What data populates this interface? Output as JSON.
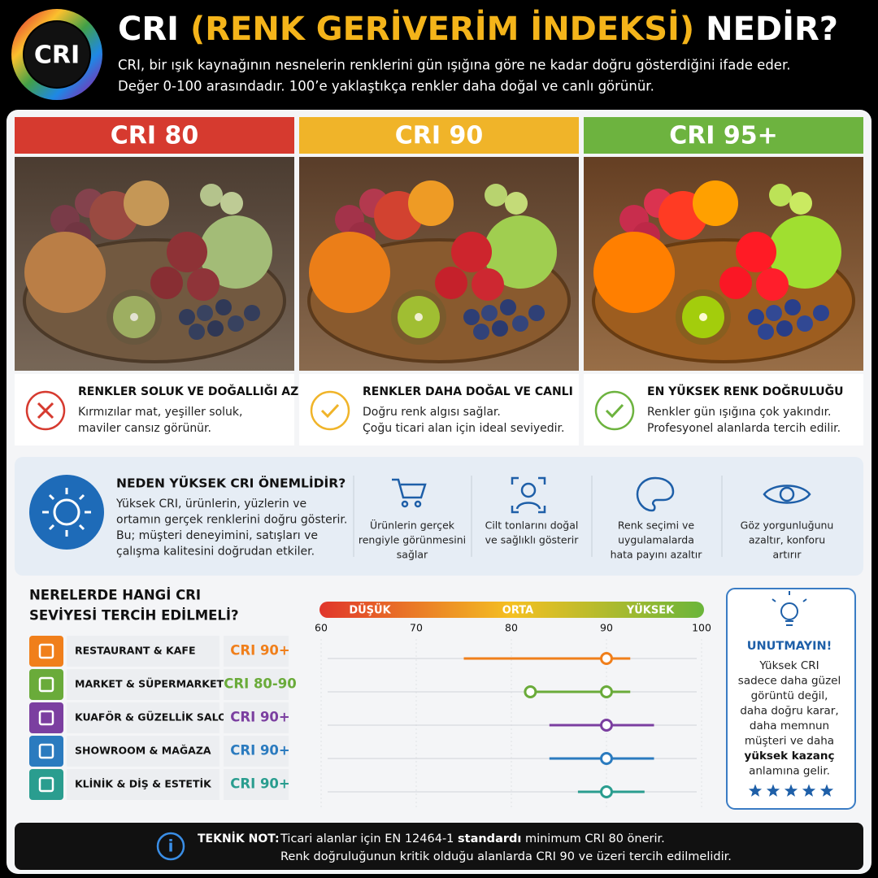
{
  "header": {
    "logo": "CRI",
    "title": [
      "CRI ",
      "(RENK GERİVERİM İNDEKSİ)",
      " NEDİR?"
    ],
    "description": [
      "CRI, bir ışık kaynağının nesnelerin renklerini gün ışığına göre ne kadar doğru gösterdiğini ifade eder.",
      "Değer 0-100 arasındadır. 100’e yaklaştıkça renkler daha doğal ve canlı görünür."
    ]
  },
  "panels": [
    {
      "label": "CRI 80",
      "color": "#d63a2f",
      "heading": "RENKLER SOLUK VE DOĞALLIĞI AZ",
      "lines": [
        "Kırmızılar mat, yeşiller soluk,",
        "maviler cansız görünür."
      ]
    },
    {
      "label": "CRI 90",
      "color": "#f0b429",
      "heading": "RENKLER DAHA DOĞAL VE CANLI",
      "lines": [
        "Doğru renk algısı sağlar.",
        "Çoğu ticari alan için ideal seviyedir."
      ]
    },
    {
      "label": "CRI 95+",
      "color": "#6db33f",
      "heading": "EN YÜKSEK RENK DOĞRULUĞU",
      "lines": [
        "Renkler gün ışığına çok yakındır.",
        "Profesyonel alanlarda tercih edilir."
      ]
    }
  ],
  "importance": {
    "title": "NEDEN YÜKSEK CRI ÖNEMLİDİR?",
    "lines": [
      "Yüksek CRI, ürünlerin, yüzlerin ve",
      "ortamın gerçek renklerini doğru gösterir.",
      "Bu; müşteri deneyimini, satışları ve",
      "çalışma kalitesini doğrudan etkiler."
    ],
    "features": [
      {
        "lines": [
          "Ürünlerin gerçek",
          "rengiyle görünmesini",
          "sağlar"
        ]
      },
      {
        "lines": [
          "Cilt tonlarını doğal",
          "ve sağlıklı gösterir"
        ]
      },
      {
        "lines": [
          "Renk seçimi ve",
          "uygulamalarda",
          "hata payını azaltır"
        ]
      },
      {
        "lines": [
          "Göz yorgunluğunu",
          "azaltır, konforu",
          "artırır"
        ]
      }
    ]
  },
  "usage": {
    "title": [
      "NERELERDE HANGİ CRI",
      "SEVİYESİ TERCİH EDİLMELİ?"
    ],
    "scale_labels": [
      "DÜŞÜK",
      "ORTA",
      "YÜKSEK"
    ],
    "xlim": [
      60,
      100
    ],
    "xticks": [
      60,
      70,
      80,
      90,
      100
    ],
    "rows": [
      {
        "name": "RESTAURANT & KAFE",
        "level": "CRI 90+",
        "color": "#f07f1b",
        "range": [
          75,
          92.5
        ],
        "points": [
          90
        ]
      },
      {
        "name": "MARKET & SÜPERMARKET",
        "level": "CRI 80-90",
        "color": "#6aab3a",
        "range": [
          82,
          92.5
        ],
        "points": [
          82,
          90
        ]
      },
      {
        "name": "KUAFÖR & GÜZELLİK SALONU",
        "level": "CRI 90+",
        "color": "#7b3fa0",
        "range": [
          84,
          95
        ],
        "points": [
          90
        ]
      },
      {
        "name": "SHOWROOM & MAĞAZA",
        "level": "CRI 90+",
        "color": "#2b7bbf",
        "range": [
          84,
          95
        ],
        "points": [
          90
        ]
      },
      {
        "name": "KLİNİK & DİŞ & ESTETİK",
        "level": "CRI 90+",
        "color": "#2a9d8f",
        "range": [
          87,
          94
        ],
        "points": [
          90
        ]
      }
    ]
  },
  "reminder": {
    "title": "UNUTMAYIN!",
    "lines": [
      "Yüksek CRI",
      "sadece daha güzel",
      "görüntü değil,",
      "daha doğru karar,",
      "daha memnun",
      "müşteri ve daha"
    ],
    "emphasis": "yüksek kazanç",
    "closing": "anlamına gelir."
  },
  "note": {
    "label": "TEKNİK NOT:",
    "line1": [
      "Ticari alanlar için EN 12464-1 ",
      "standardı",
      " minimum CRI 80 önerir."
    ],
    "line2": "Renk doğruluğunun kritik olduğu alanlarda CRI 90 ve üzeri tercih edilmelidir."
  }
}
